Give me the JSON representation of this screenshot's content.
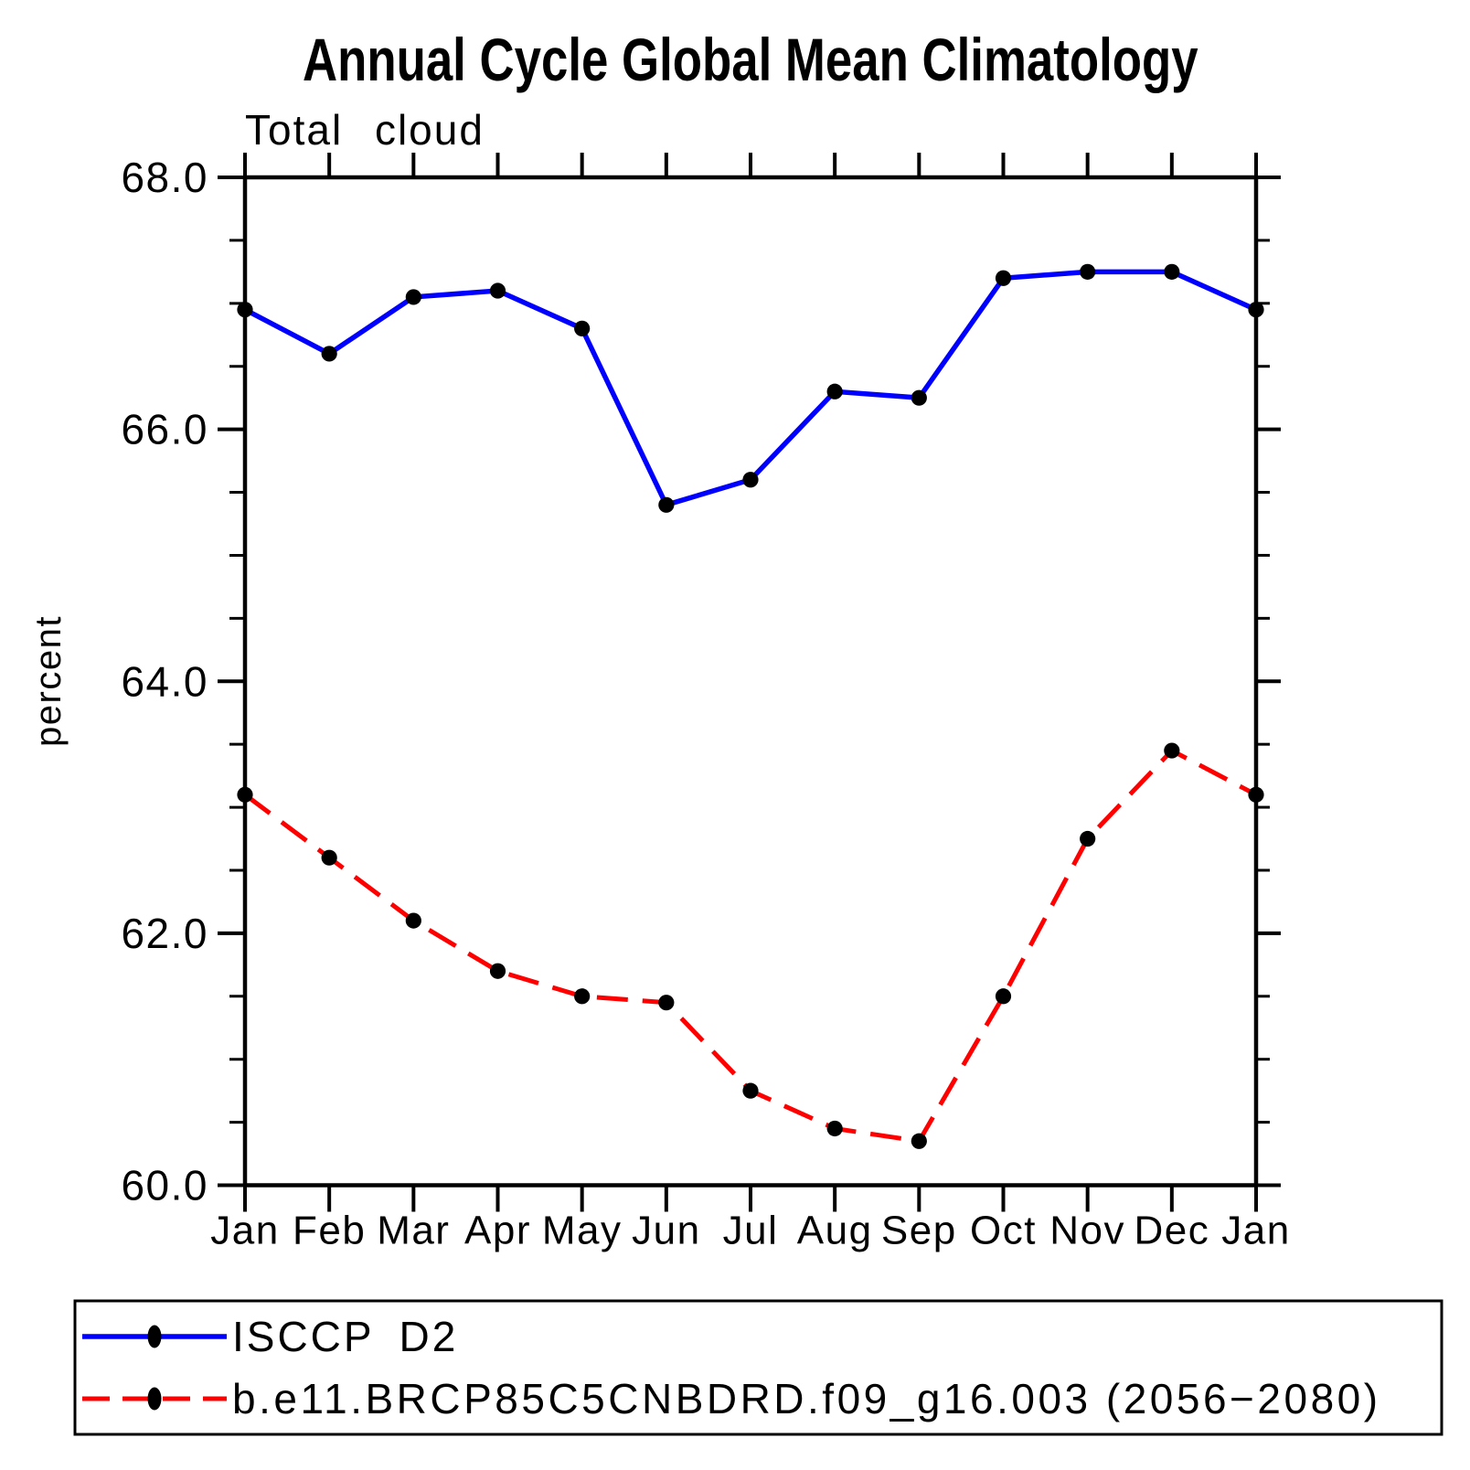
{
  "title": "Annual Cycle Global Mean Climatology",
  "subtitle": "Total cloud",
  "ylabel": "percent",
  "chart_data": {
    "type": "line",
    "categories": [
      "Jan",
      "Feb",
      "Mar",
      "Apr",
      "May",
      "Jun",
      "Jul",
      "Aug",
      "Sep",
      "Oct",
      "Nov",
      "Dec",
      "Jan"
    ],
    "xlabel": "",
    "ylabel": "percent",
    "ylim": [
      60,
      68
    ],
    "ytick_major": [
      60,
      62,
      64,
      66,
      68
    ],
    "ytick_labels": [
      "60.0",
      "62.0",
      "64.0",
      "66.0",
      "68.0"
    ],
    "ytick_minor_step": 0.5,
    "grid": false,
    "legend_position": "bottom-left-box",
    "series": [
      {
        "name": "ISCCP D2",
        "color": "#0000ff",
        "line_style": "solid",
        "marker": "filled-circle",
        "marker_color": "#000000",
        "values": [
          66.95,
          66.6,
          67.05,
          67.1,
          66.8,
          65.4,
          65.6,
          66.3,
          66.25,
          67.2,
          67.25,
          67.25,
          66.95
        ]
      },
      {
        "name": "b.e11.BRCP85C5CNBDRD.f09_g16.003 (2056−2080)",
        "color": "#ff0000",
        "line_style": "dashed",
        "marker": "filled-circle",
        "marker_color": "#000000",
        "values": [
          63.1,
          62.6,
          62.1,
          61.7,
          61.5,
          61.45,
          60.75,
          60.45,
          60.35,
          61.5,
          62.75,
          63.45,
          63.1
        ]
      }
    ]
  }
}
